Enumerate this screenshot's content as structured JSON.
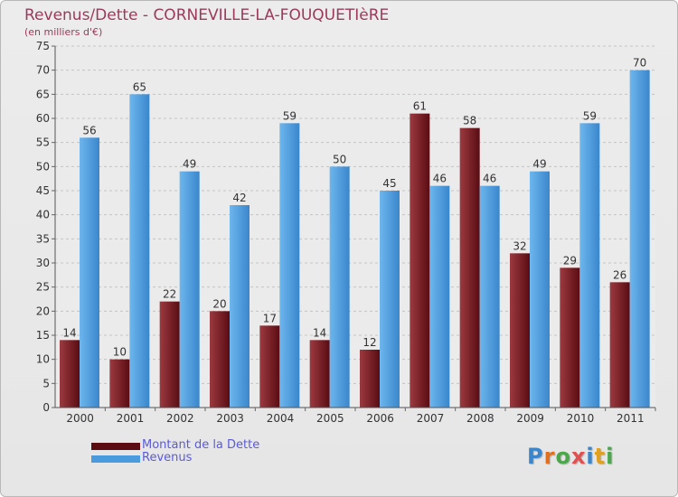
{
  "chart_data": {
    "type": "bar",
    "title": "Revenus/Dette - CORNEVILLE-LA-FOUQUETIèRE",
    "subtitle": "(en milliers d'€)",
    "categories": [
      "2000",
      "2001",
      "2002",
      "2003",
      "2004",
      "2005",
      "2006",
      "2007",
      "2008",
      "2009",
      "2010",
      "2011"
    ],
    "series": [
      {
        "name": "Montant de la Dette",
        "values": [
          14,
          10,
          22,
          20,
          17,
          14,
          12,
          61,
          58,
          32,
          29,
          26
        ]
      },
      {
        "name": "Revenus",
        "values": [
          56,
          65,
          49,
          42,
          59,
          50,
          45,
          46,
          46,
          49,
          59,
          70
        ]
      }
    ],
    "ylim": [
      0,
      75
    ],
    "yticks": [
      0,
      5,
      10,
      15,
      20,
      25,
      30,
      35,
      40,
      45,
      50,
      55,
      60,
      65,
      70,
      75
    ],
    "grid": true,
    "legend_position": "bottom-left"
  },
  "colors": {
    "debt": "#7a1f26",
    "debt_dark": "#5a0c12",
    "revenue": "#5aa8e6",
    "revenue_dark": "#3a86cc",
    "title": "#9b3a5a",
    "legend_text": "#5a5ad8"
  },
  "logo": {
    "text": "Proxiti",
    "letter_colors": [
      "#3a86cc",
      "#e07020",
      "#4aa84a",
      "#e05050",
      "#3a86cc",
      "#e0a020",
      "#4aa84a"
    ]
  }
}
